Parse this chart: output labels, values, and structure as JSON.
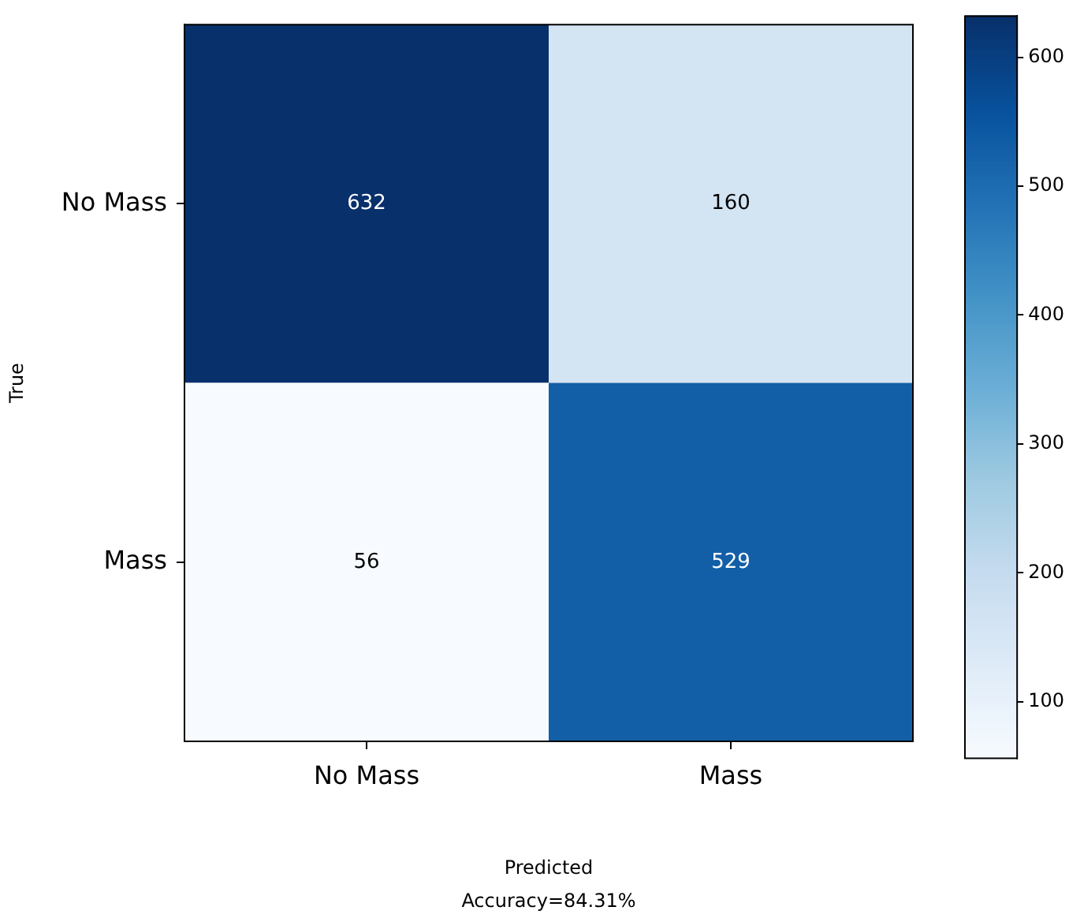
{
  "chart_data": {
    "type": "heatmap",
    "xlabel": "Predicted",
    "ylabel": "True",
    "annotations": [
      "Accuracy=84.31%"
    ],
    "categories": [
      "No Mass",
      "Mass"
    ],
    "y_categories": [
      "No Mass",
      "Mass"
    ],
    "cells": [
      [
        632,
        160
      ],
      [
        56,
        529
      ]
    ],
    "clim": [
      56,
      632
    ],
    "cticks": [
      100,
      200,
      300,
      400,
      500,
      600
    ],
    "data_labels": true,
    "grid": false
  }
}
